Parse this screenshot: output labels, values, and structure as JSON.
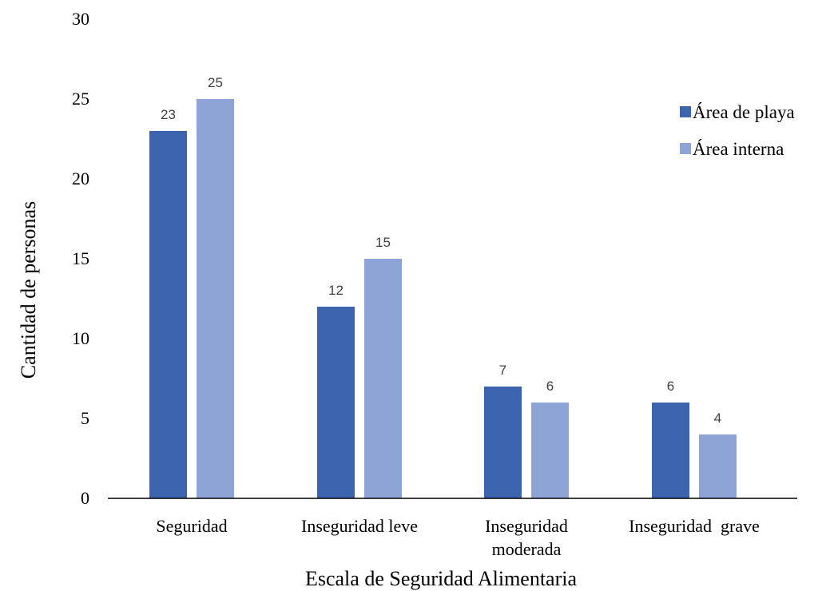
{
  "chart_data": {
    "type": "bar",
    "title": "",
    "xlabel": "Escala de Seguridad Alimentaria",
    "ylabel": "Cantidad de personas",
    "ylim": [
      0,
      30
    ],
    "yticks": [
      0,
      5,
      10,
      15,
      20,
      25,
      30
    ],
    "grid": false,
    "legend_position": "top-right",
    "categories": [
      [
        "Seguridad"
      ],
      [
        "Inseguridad leve"
      ],
      [
        "Inseguridad",
        "moderada"
      ],
      [
        "Inseguridad  grave"
      ]
    ],
    "series": [
      {
        "name": "Área de playa",
        "color": "#3c63ad",
        "values": [
          23,
          12,
          7,
          6
        ]
      },
      {
        "name": "Área interna",
        "color": "#8fa4d6",
        "values": [
          25,
          15,
          6,
          4
        ]
      }
    ]
  }
}
